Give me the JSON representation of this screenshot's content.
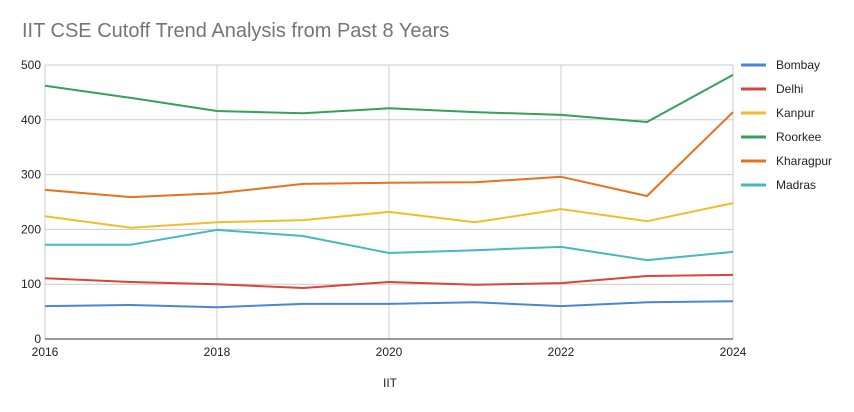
{
  "chart_data": {
    "type": "line",
    "title": "IIT CSE Cutoff Trend Analysis from Past 8 Years",
    "xlabel": "IIT",
    "ylabel": "",
    "x": [
      2016,
      2017,
      2018,
      2019,
      2020,
      2021,
      2022,
      2023,
      2024
    ],
    "x_ticks": [
      "2016",
      "2018",
      "2020",
      "2022",
      "2024"
    ],
    "y_ticks": [
      "0",
      "100",
      "200",
      "300",
      "400",
      "500"
    ],
    "ylim": [
      0,
      500
    ],
    "xlim": [
      2016,
      2024
    ],
    "grid": true,
    "legend_position": "right",
    "series": [
      {
        "name": "Bombay",
        "color": "#4a86d8",
        "values": [
          60,
          62,
          58,
          64,
          64,
          67,
          60,
          67,
          69
        ]
      },
      {
        "name": "Delhi",
        "color": "#d9453c",
        "values": [
          111,
          104,
          100,
          93,
          104,
          99,
          102,
          115,
          117
        ]
      },
      {
        "name": "Kanpur",
        "color": "#f2bd2a",
        "values": [
          224,
          203,
          213,
          217,
          232,
          213,
          237,
          215,
          248
        ]
      },
      {
        "name": "Roorkee",
        "color": "#34a05a",
        "values": [
          462,
          440,
          416,
          412,
          421,
          414,
          409,
          396,
          482
        ]
      },
      {
        "name": "Kharagpur",
        "color": "#e8711c",
        "values": [
          272,
          259,
          266,
          283,
          285,
          286,
          296,
          261,
          414
        ]
      },
      {
        "name": "Madras",
        "color": "#45b8c0",
        "values": [
          172,
          172,
          199,
          188,
          157,
          162,
          168,
          144,
          159
        ]
      }
    ]
  }
}
